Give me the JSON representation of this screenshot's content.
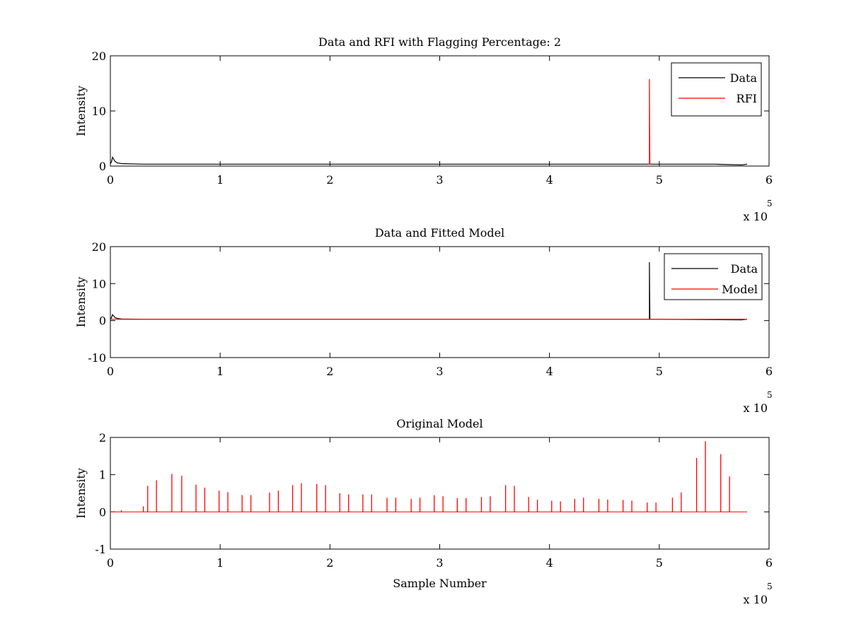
{
  "chart_data": [
    {
      "type": "line",
      "title": "Data and RFI with Flagging Percentage: 2",
      "xlabel": "",
      "ylabel": "Intensity",
      "xlim": [
        0,
        6
      ],
      "ylim": [
        0,
        20
      ],
      "xticks": [
        "0",
        "1",
        "2",
        "3",
        "4",
        "5",
        "6"
      ],
      "yticks": [
        "0",
        "10",
        "20"
      ],
      "x_exponent": {
        "base": "x 10",
        "power": "5"
      },
      "legend_position": "top-right",
      "colors": {
        "Data": "#000000",
        "RFI": "#ff0000"
      },
      "series": [
        {
          "name": "Data",
          "x": [
            0,
            0.01,
            0.02,
            0.04,
            0.06,
            0.1,
            0.3,
            1,
            2,
            3,
            4,
            4.9,
            4.92,
            5,
            5.5,
            5.75,
            5.8
          ],
          "y": [
            0.4,
            0.8,
            1.6,
            0.9,
            0.6,
            0.45,
            0.35,
            0.35,
            0.35,
            0.35,
            0.35,
            0.35,
            0.35,
            0.35,
            0.35,
            0.2,
            0.35
          ]
        },
        {
          "name": "RFI",
          "x": [
            4.9,
            4.91,
            4.91,
            4.915,
            4.92
          ],
          "y": [
            0.35,
            0.35,
            15.8,
            0.35,
            0.35
          ]
        }
      ]
    },
    {
      "type": "line",
      "title": "Data and Fitted Model",
      "xlabel": "",
      "ylabel": "Intensity",
      "xlim": [
        0,
        6
      ],
      "ylim": [
        -10,
        20
      ],
      "xticks": [
        "0",
        "1",
        "2",
        "3",
        "4",
        "5",
        "6"
      ],
      "yticks": [
        "-10",
        "0",
        "10",
        "20"
      ],
      "x_exponent": {
        "base": "x 10",
        "power": "5"
      },
      "legend_position": "top-right",
      "colors": {
        "Data": "#000000",
        "Model": "#ff0000"
      },
      "series": [
        {
          "name": "Data",
          "x": [
            0,
            0.01,
            0.02,
            0.04,
            0.06,
            0.1,
            0.3,
            4.9,
            4.91,
            4.91,
            4.915,
            4.92,
            5.75,
            5.8
          ],
          "y": [
            0.4,
            0.8,
            1.6,
            0.9,
            0.6,
            0.45,
            0.35,
            0.35,
            0.35,
            15.8,
            0.35,
            0.35,
            0.2,
            0.35
          ]
        },
        {
          "name": "Model",
          "x": [
            0,
            5.8
          ],
          "y": [
            0.35,
            0.35
          ]
        }
      ]
    },
    {
      "type": "line",
      "title": "Original Model",
      "xlabel": "Sample Number",
      "ylabel": "Intensity",
      "xlim": [
        0,
        6
      ],
      "ylim": [
        -1,
        2
      ],
      "xticks": [
        "0",
        "1",
        "2",
        "3",
        "4",
        "5",
        "6"
      ],
      "yticks": [
        "-1",
        "0",
        "1",
        "2"
      ],
      "x_exponent": {
        "base": "x 10",
        "power": "5"
      },
      "colors": {
        "Model": "#ff0000"
      },
      "series": [
        {
          "x": [
            0.1,
            0.3,
            0.34,
            0.42,
            0.56,
            0.65,
            0.78,
            0.86,
            0.99,
            1.07,
            1.2,
            1.28,
            1.45,
            1.53,
            1.66,
            1.74,
            1.88,
            1.96,
            2.09,
            2.17,
            2.3,
            2.38,
            2.52,
            2.6,
            2.74,
            2.82,
            2.95,
            3.03,
            3.16,
            3.24,
            3.38,
            3.46,
            3.6,
            3.68,
            3.81,
            3.89,
            4.02,
            4.1,
            4.23,
            4.31,
            4.45,
            4.53,
            4.67,
            4.75,
            4.89,
            4.97,
            5.12,
            5.2,
            5.34,
            5.42,
            5.56,
            5.64
          ],
          "y": [
            0.05,
            0.15,
            0.7,
            0.85,
            1.02,
            0.97,
            0.73,
            0.65,
            0.57,
            0.53,
            0.45,
            0.45,
            0.52,
            0.57,
            0.72,
            0.77,
            0.75,
            0.72,
            0.5,
            0.47,
            0.47,
            0.47,
            0.38,
            0.38,
            0.35,
            0.38,
            0.45,
            0.42,
            0.37,
            0.37,
            0.4,
            0.42,
            0.72,
            0.7,
            0.4,
            0.33,
            0.3,
            0.28,
            0.35,
            0.38,
            0.35,
            0.33,
            0.32,
            0.3,
            0.25,
            0.25,
            0.38,
            0.52,
            1.45,
            1.9,
            1.55,
            0.95
          ]
        }
      ]
    }
  ]
}
